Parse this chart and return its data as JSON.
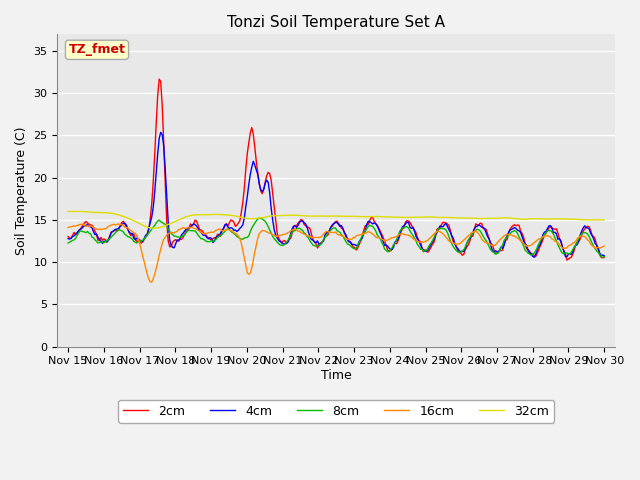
{
  "title": "Tonzi Soil Temperature Set A",
  "xlabel": "Time",
  "ylabel": "Soil Temperature (C)",
  "ylim": [
    0,
    37
  ],
  "yticks": [
    0,
    5,
    10,
    15,
    20,
    25,
    30,
    35
  ],
  "x_labels": [
    "Nov 15",
    "Nov 16",
    "Nov 17",
    "Nov 18",
    "Nov 19",
    "Nov 20",
    "Nov 21",
    "Nov 22",
    "Nov 23",
    "Nov 24",
    "Nov 25",
    "Nov 26",
    "Nov 27",
    "Nov 28",
    "Nov 29",
    "Nov 30"
  ],
  "series_colors": [
    "#ff0000",
    "#0000ff",
    "#00bb00",
    "#ff8800",
    "#dddd00"
  ],
  "series_labels": [
    "2cm",
    "4cm",
    "8cm",
    "16cm",
    "32cm"
  ],
  "annotation_text": "TZ_fmet",
  "annotation_color": "#cc0000",
  "annotation_bg": "#ffffcc",
  "annotation_border": "#aaaaaa",
  "plot_bg": "#e8e8e8",
  "fig_bg": "#f2f2f2",
  "grid_color": "#ffffff",
  "title_fontsize": 11,
  "label_fontsize": 9,
  "tick_fontsize": 8,
  "legend_fontsize": 9,
  "linewidth": 1.0
}
